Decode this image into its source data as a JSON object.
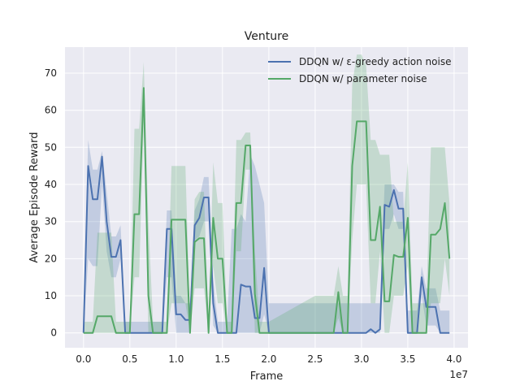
{
  "chart_data": {
    "type": "line",
    "title": "Venture",
    "xlabel": "Frame",
    "ylabel": "Average Episode Reward",
    "x_offset_label": "1e7",
    "xlim": [
      -0.2,
      4.15
    ],
    "ylim": [
      -4,
      77
    ],
    "xticks": [
      0.0,
      0.5,
      1.0,
      1.5,
      2.0,
      2.5,
      3.0,
      3.5,
      4.0
    ],
    "xtick_labels": [
      "0.0",
      "0.5",
      "1.0",
      "1.5",
      "2.0",
      "2.5",
      "3.0",
      "3.5",
      "4.0"
    ],
    "yticks": [
      0,
      10,
      20,
      30,
      40,
      50,
      60,
      70
    ],
    "ytick_labels": [
      "0",
      "10",
      "20",
      "30",
      "40",
      "50",
      "60",
      "70"
    ],
    "grid": true,
    "legend_position": "top-right",
    "series": [
      {
        "name": "DDQN w/ ε-greedy action noise",
        "color": "#4c72b0",
        "x": [
          0.0,
          0.05,
          0.1,
          0.15,
          0.2,
          0.25,
          0.3,
          0.35,
          0.4,
          0.45,
          0.5,
          0.55,
          0.6,
          0.65,
          0.7,
          0.75,
          0.8,
          0.85,
          0.9,
          0.95,
          1.0,
          1.05,
          1.1,
          1.15,
          1.2,
          1.25,
          1.3,
          1.35,
          1.4,
          1.45,
          1.5,
          1.55,
          1.6,
          1.65,
          1.7,
          1.75,
          1.8,
          1.85,
          1.9,
          1.95,
          2.0,
          2.5,
          2.85,
          2.95,
          3.0,
          3.05,
          3.1,
          3.15,
          3.2,
          3.25,
          3.3,
          3.35,
          3.4,
          3.45,
          3.5,
          3.55,
          3.6,
          3.65,
          3.7,
          3.75,
          3.8,
          3.85,
          3.9,
          3.95
        ],
        "y": [
          0,
          45,
          36,
          36,
          47.5,
          30,
          20.5,
          20.5,
          25,
          0,
          0,
          0,
          0,
          0,
          0,
          0,
          0,
          0,
          28,
          28,
          5,
          5,
          3.5,
          3.5,
          29,
          31,
          36.5,
          36.5,
          8,
          0,
          0,
          0,
          0,
          0,
          13,
          12.5,
          12.5,
          4,
          4,
          17.5,
          0,
          0,
          0,
          0,
          0,
          0,
          1,
          0,
          1,
          34.5,
          34,
          38.5,
          33.5,
          33.5,
          0,
          0,
          0,
          15,
          7,
          7,
          7,
          0,
          0,
          0
        ],
        "band_upper": [
          5,
          52,
          44,
          44,
          49,
          38,
          26,
          26,
          29,
          3,
          3,
          3,
          3,
          3,
          3,
          3,
          3,
          3,
          33,
          33,
          10,
          10,
          8,
          8,
          33,
          36,
          42,
          42,
          14,
          3,
          3,
          3,
          28,
          28,
          32,
          30,
          48,
          45,
          40,
          35,
          8,
          8,
          8,
          8,
          8,
          8,
          8,
          8,
          8,
          40,
          40,
          40,
          38,
          38,
          6,
          6,
          6,
          18,
          12,
          12,
          12,
          6,
          6,
          6
        ],
        "band_lower": [
          0,
          20,
          18,
          18,
          40,
          22,
          15,
          15,
          20,
          0,
          0,
          0,
          0,
          0,
          0,
          0,
          0,
          0,
          15,
          15,
          0,
          0,
          0,
          0,
          25,
          26,
          30,
          30,
          2,
          0,
          0,
          0,
          0,
          0,
          0,
          0,
          0,
          0,
          0,
          5,
          0,
          0,
          0,
          0,
          0,
          0,
          0,
          0,
          0,
          28,
          28,
          32,
          28,
          28,
          0,
          0,
          0,
          10,
          2,
          2,
          2,
          0,
          0,
          0
        ]
      },
      {
        "name": "DDQN w/ parameter noise",
        "color": "#55a868",
        "x": [
          0.0,
          0.1,
          0.15,
          0.2,
          0.3,
          0.35,
          0.4,
          0.5,
          0.55,
          0.6,
          0.65,
          0.7,
          0.75,
          0.8,
          0.85,
          0.9,
          0.95,
          1.0,
          1.05,
          1.1,
          1.15,
          1.2,
          1.25,
          1.3,
          1.35,
          1.4,
          1.45,
          1.5,
          1.55,
          1.6,
          1.65,
          1.7,
          1.75,
          1.8,
          1.85,
          1.9,
          1.95,
          2.0,
          2.5,
          2.7,
          2.75,
          2.8,
          2.85,
          2.9,
          2.95,
          3.0,
          3.05,
          3.1,
          3.15,
          3.2,
          3.25,
          3.3,
          3.35,
          3.4,
          3.45,
          3.5,
          3.55,
          3.6,
          3.65,
          3.7,
          3.75,
          3.8,
          3.85,
          3.9,
          3.95
        ],
        "y": [
          0,
          0,
          4.5,
          4.5,
          4.5,
          0,
          0,
          0,
          32,
          32,
          66,
          10,
          0,
          0,
          0,
          0,
          30.5,
          30.5,
          30.5,
          30.5,
          0,
          24.5,
          25.5,
          25.5,
          0,
          31,
          20,
          20,
          0,
          0,
          35,
          35,
          50.5,
          50.5,
          10.5,
          0,
          0,
          0,
          0,
          0,
          11,
          0,
          0,
          45,
          57,
          57,
          57,
          25,
          25,
          34,
          8.5,
          8.5,
          21,
          20.5,
          20.5,
          31,
          0,
          0,
          0,
          0,
          26.5,
          26.5,
          28,
          35,
          20
        ],
        "band_upper": [
          3,
          3,
          27,
          27,
          27,
          3,
          3,
          3,
          55,
          55,
          73,
          30,
          3,
          3,
          3,
          3,
          45,
          45,
          45,
          45,
          3,
          36,
          38,
          38,
          3,
          46,
          35,
          35,
          3,
          3,
          52,
          52,
          54,
          54,
          22,
          3,
          3,
          3,
          10,
          10,
          18,
          10,
          10,
          67,
          75,
          75,
          72,
          52,
          52,
          48,
          48,
          48,
          30,
          30,
          30,
          46,
          8,
          8,
          8,
          8,
          50,
          50,
          50,
          50,
          35
        ],
        "band_lower": [
          0,
          0,
          0,
          0,
          0,
          0,
          0,
          0,
          15,
          15,
          57,
          0,
          0,
          0,
          0,
          0,
          8,
          8,
          8,
          8,
          0,
          12,
          12,
          12,
          0,
          18,
          8,
          8,
          0,
          0,
          22,
          22,
          44,
          44,
          0,
          0,
          0,
          0,
          0,
          0,
          4,
          0,
          0,
          25,
          40,
          40,
          40,
          8,
          8,
          22,
          0,
          0,
          10,
          10,
          10,
          18,
          0,
          0,
          0,
          0,
          8,
          8,
          8,
          20,
          10
        ]
      }
    ]
  }
}
